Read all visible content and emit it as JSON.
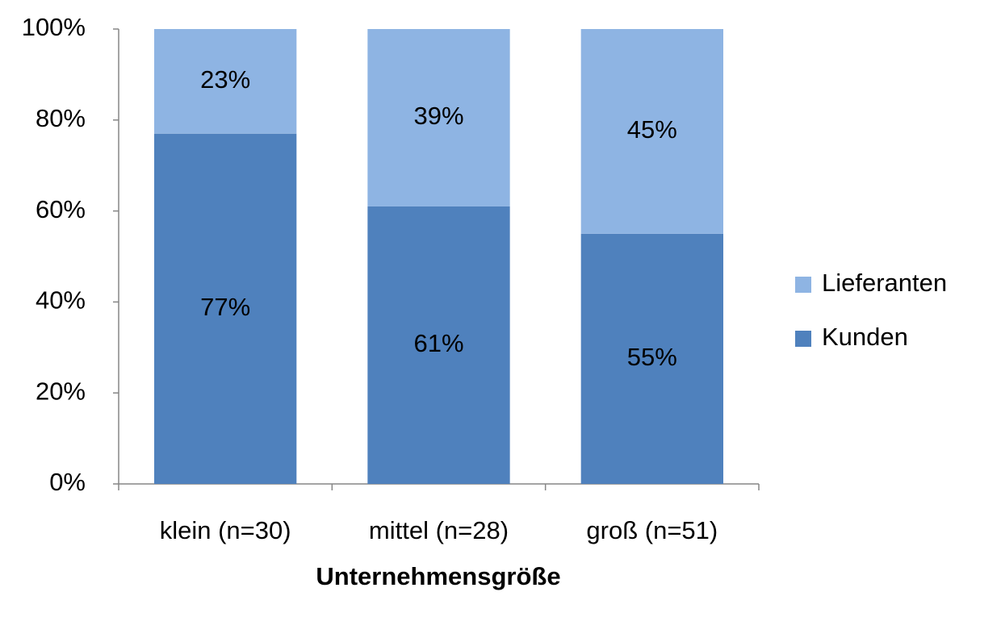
{
  "chart_data": {
    "type": "stacked-bar",
    "x_label": "Unternehmensgröße",
    "categories": [
      "klein (n=30)",
      "mittel (n=28)",
      "groß (n=51)"
    ],
    "series": [
      {
        "name": "Kunden",
        "color": "#4f81bd",
        "values": [
          77,
          61,
          55
        ],
        "value_labels": [
          "77%",
          "61%",
          "55%"
        ]
      },
      {
        "name": "Lieferanten",
        "color": "#8eb4e3",
        "values": [
          23,
          39,
          45
        ],
        "value_labels": [
          "23%",
          "39%",
          "45%"
        ]
      }
    ],
    "ylim": [
      0,
      100
    ],
    "yticks": [
      {
        "value": 0,
        "label": "0%"
      },
      {
        "value": 20,
        "label": "20%"
      },
      {
        "value": 40,
        "label": "40%"
      },
      {
        "value": 60,
        "label": "60%"
      },
      {
        "value": 80,
        "label": "80%"
      },
      {
        "value": 100,
        "label": "100%"
      }
    ],
    "grid": false,
    "legend": "right"
  }
}
